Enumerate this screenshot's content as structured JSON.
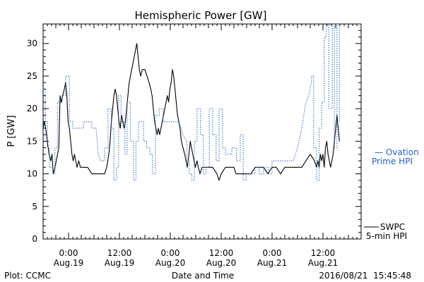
{
  "chart_data": {
    "type": "line",
    "title": "Hemispheric Power [GW]",
    "xlabel": "Date and Time",
    "ylabel": "P [GW]",
    "ylim": [
      0,
      33
    ],
    "yticks": [
      0,
      5,
      10,
      15,
      20,
      25,
      30
    ],
    "xlim_hours": [
      -6,
      69
    ],
    "xticks": [
      {
        "x": 0,
        "time": "0:00",
        "date": "Aug.19"
      },
      {
        "x": 12,
        "time": "12:00",
        "date": "Aug.19"
      },
      {
        "x": 24,
        "time": "0:00",
        "date": "Aug.20"
      },
      {
        "x": 36,
        "time": "12:00",
        "date": "Aug.20"
      },
      {
        "x": 48,
        "time": "0:00",
        "date": "Aug.21"
      },
      {
        "x": 60,
        "time": "12:00",
        "date": "Aug.21"
      }
    ],
    "x_units": "hours relative to Aug.19 0:00",
    "series": [
      {
        "name": "SWPC 5-min HPI",
        "color": "#000000",
        "style": "solid",
        "points": [
          [
            -6,
            17
          ],
          [
            -5.7,
            18
          ],
          [
            -5.4,
            17
          ],
          [
            -5,
            15
          ],
          [
            -4.6,
            13
          ],
          [
            -4.2,
            12
          ],
          [
            -3.9,
            13
          ],
          [
            -3.6,
            10
          ],
          [
            -3.2,
            11
          ],
          [
            -2.9,
            12
          ],
          [
            -2.6,
            13
          ],
          [
            -2.3,
            14
          ],
          [
            -2,
            22
          ],
          [
            -1.7,
            21
          ],
          [
            -1.4,
            22
          ],
          [
            -1,
            23
          ],
          [
            -0.7,
            24
          ],
          [
            -0.4,
            22
          ],
          [
            -0.1,
            18
          ],
          [
            0.2,
            17
          ],
          [
            0.5,
            15
          ],
          [
            0.8,
            13
          ],
          [
            1.1,
            12
          ],
          [
            1.4,
            13
          ],
          [
            1.7,
            12
          ],
          [
            2,
            11
          ],
          [
            2.4,
            12
          ],
          [
            2.8,
            11
          ],
          [
            3.5,
            11
          ],
          [
            4.5,
            11
          ],
          [
            5.5,
            10
          ],
          [
            6.5,
            10
          ],
          [
            7.5,
            10
          ],
          [
            8.5,
            10
          ],
          [
            9,
            11
          ],
          [
            9.5,
            13
          ],
          [
            9.8,
            15
          ],
          [
            10.1,
            18
          ],
          [
            10.4,
            20
          ],
          [
            10.7,
            22
          ],
          [
            11,
            23
          ],
          [
            11.3,
            22
          ],
          [
            11.6,
            20
          ],
          [
            11.9,
            18
          ],
          [
            12.2,
            17
          ],
          [
            12.5,
            19
          ],
          [
            12.8,
            18
          ],
          [
            13.1,
            17
          ],
          [
            13.4,
            18
          ],
          [
            13.7,
            20
          ],
          [
            14,
            22
          ],
          [
            14.3,
            24
          ],
          [
            14.6,
            25
          ],
          [
            14.9,
            26
          ],
          [
            15.2,
            27
          ],
          [
            15.5,
            28
          ],
          [
            15.8,
            29
          ],
          [
            16.1,
            30
          ],
          [
            16.4,
            28
          ],
          [
            16.7,
            26
          ],
          [
            17,
            25
          ],
          [
            17.4,
            26
          ],
          [
            18,
            26
          ],
          [
            18.5,
            25
          ],
          [
            19,
            24
          ],
          [
            19.4,
            23
          ],
          [
            19.7,
            22
          ],
          [
            20,
            20
          ],
          [
            20.3,
            18
          ],
          [
            20.6,
            17
          ],
          [
            20.9,
            16
          ],
          [
            21.2,
            17
          ],
          [
            21.5,
            16
          ],
          [
            21.8,
            17
          ],
          [
            22.1,
            18
          ],
          [
            22.4,
            19
          ],
          [
            22.7,
            20
          ],
          [
            23,
            21
          ],
          [
            23.3,
            22
          ],
          [
            23.6,
            21
          ],
          [
            23.9,
            23
          ],
          [
            24.2,
            24
          ],
          [
            24.5,
            26
          ],
          [
            24.8,
            25
          ],
          [
            25.1,
            23
          ],
          [
            25.4,
            21
          ],
          [
            25.7,
            19
          ],
          [
            26,
            18
          ],
          [
            26.3,
            17
          ],
          [
            26.6,
            15
          ],
          [
            27,
            14
          ],
          [
            27.4,
            13
          ],
          [
            27.7,
            12
          ],
          [
            28,
            11
          ],
          [
            28.4,
            13
          ],
          [
            28.7,
            15
          ],
          [
            29,
            14
          ],
          [
            29.3,
            13
          ],
          [
            29.6,
            12
          ],
          [
            29.9,
            11
          ],
          [
            30.3,
            12
          ],
          [
            30.6,
            11
          ],
          [
            31,
            10
          ],
          [
            31.5,
            11
          ],
          [
            32,
            11
          ],
          [
            33,
            11
          ],
          [
            34,
            11
          ],
          [
            35,
            10
          ],
          [
            35.5,
            9
          ],
          [
            36,
            10
          ],
          [
            37,
            11
          ],
          [
            38,
            11
          ],
          [
            39,
            11
          ],
          [
            39.5,
            10
          ],
          [
            40,
            10
          ],
          [
            41,
            10
          ],
          [
            42,
            10
          ],
          [
            43,
            10
          ],
          [
            44,
            11
          ],
          [
            45,
            11
          ],
          [
            46,
            11
          ],
          [
            47,
            10
          ],
          [
            48,
            11
          ],
          [
            49,
            11
          ],
          [
            50,
            10
          ],
          [
            51,
            11
          ],
          [
            52,
            11
          ],
          [
            53,
            11
          ],
          [
            54,
            11
          ],
          [
            55,
            11
          ],
          [
            56,
            12
          ],
          [
            57,
            13
          ],
          [
            58,
            12
          ],
          [
            58.5,
            11
          ],
          [
            58.8,
            12
          ],
          [
            59.1,
            11
          ],
          [
            59.4,
            13
          ],
          [
            59.7,
            12
          ],
          [
            60,
            13
          ],
          [
            60.3,
            11
          ],
          [
            60.6,
            14
          ],
          [
            60.9,
            15
          ],
          [
            61.2,
            13
          ],
          [
            61.5,
            12
          ],
          [
            61.8,
            11
          ],
          [
            62.1,
            12
          ],
          [
            62.4,
            13
          ],
          [
            62.7,
            15
          ],
          [
            63,
            17
          ],
          [
            63.3,
            19
          ],
          [
            63.6,
            17
          ],
          [
            63.9,
            15
          ]
        ]
      },
      {
        "name": "Ovation Prime HPI",
        "color": "#1f63c4",
        "style": "dotted",
        "points": [
          [
            -6,
            23
          ],
          [
            -5.5,
            23
          ],
          [
            -5.5,
            18
          ],
          [
            -5,
            18
          ],
          [
            -5,
            14
          ],
          [
            -4.5,
            14
          ],
          [
            -4.5,
            11
          ],
          [
            -3.7,
            11
          ],
          [
            -3.7,
            10
          ],
          [
            -3.2,
            10
          ],
          [
            -3.2,
            14
          ],
          [
            -2.6,
            14
          ],
          [
            -2.6,
            21
          ],
          [
            -1.5,
            21
          ],
          [
            -1.5,
            22
          ],
          [
            -0.7,
            22
          ],
          [
            -0.7,
            25
          ],
          [
            0.2,
            25
          ],
          [
            0.2,
            18
          ],
          [
            1,
            18
          ],
          [
            1,
            17
          ],
          [
            3.5,
            17
          ],
          [
            3.5,
            18
          ],
          [
            5.5,
            18
          ],
          [
            5.5,
            17
          ],
          [
            6.5,
            17
          ],
          [
            7,
            13
          ],
          [
            7.5,
            12
          ],
          [
            8.5,
            12
          ],
          [
            8.5,
            14
          ],
          [
            9.3,
            14
          ],
          [
            9.3,
            20
          ],
          [
            10.1,
            20
          ],
          [
            10.1,
            17
          ],
          [
            10.7,
            17
          ],
          [
            10.7,
            9
          ],
          [
            11.3,
            9
          ],
          [
            11.3,
            11
          ],
          [
            11.8,
            11
          ],
          [
            11.8,
            22
          ],
          [
            12.4,
            22
          ],
          [
            12.4,
            18
          ],
          [
            13.3,
            18
          ],
          [
            13.3,
            13
          ],
          [
            13.8,
            13
          ],
          [
            13.8,
            21
          ],
          [
            14.6,
            21
          ],
          [
            14.6,
            15
          ],
          [
            15.3,
            15
          ],
          [
            15.3,
            9
          ],
          [
            15.9,
            9
          ],
          [
            15.9,
            15
          ],
          [
            16.5,
            15
          ],
          [
            16.5,
            18
          ],
          [
            17.7,
            18
          ],
          [
            17.7,
            15
          ],
          [
            18.4,
            15
          ],
          [
            18.4,
            14
          ],
          [
            19.2,
            14
          ],
          [
            19.2,
            13
          ],
          [
            19.8,
            13
          ],
          [
            19.8,
            10
          ],
          [
            20.5,
            10
          ],
          [
            20.5,
            19
          ],
          [
            21.4,
            19
          ],
          [
            21.4,
            20
          ],
          [
            22.3,
            20
          ],
          [
            22.3,
            18
          ],
          [
            26,
            18
          ],
          [
            27,
            16
          ],
          [
            27.9,
            15
          ],
          [
            27.9,
            12
          ],
          [
            28.5,
            12
          ],
          [
            28.5,
            10
          ],
          [
            29.1,
            10
          ],
          [
            29.1,
            9
          ],
          [
            29.7,
            9
          ],
          [
            29.7,
            15
          ],
          [
            30.3,
            15
          ],
          [
            30.3,
            20
          ],
          [
            31.1,
            20
          ],
          [
            31.1,
            16
          ],
          [
            31.8,
            16
          ],
          [
            31.8,
            10
          ],
          [
            32.4,
            10
          ],
          [
            32.4,
            11
          ],
          [
            33.2,
            11
          ],
          [
            33.2,
            20
          ],
          [
            34,
            20
          ],
          [
            34,
            16
          ],
          [
            34.8,
            16
          ],
          [
            34.8,
            12
          ],
          [
            35.5,
            12
          ],
          [
            35.5,
            20
          ],
          [
            36.3,
            20
          ],
          [
            36.3,
            14
          ],
          [
            37,
            14
          ],
          [
            37,
            13
          ],
          [
            38.5,
            13
          ],
          [
            38.5,
            14
          ],
          [
            39.6,
            14
          ],
          [
            39.6,
            12
          ],
          [
            40.5,
            12
          ],
          [
            40.5,
            16
          ],
          [
            41.2,
            16
          ],
          [
            41.2,
            9
          ],
          [
            41.9,
            9
          ],
          [
            41.9,
            10
          ],
          [
            43,
            10
          ],
          [
            43,
            10
          ],
          [
            44,
            10
          ],
          [
            44,
            11
          ],
          [
            45,
            11
          ],
          [
            45,
            10
          ],
          [
            46,
            10
          ],
          [
            46,
            11
          ],
          [
            47.2,
            11
          ],
          [
            47.2,
            10
          ],
          [
            48,
            10
          ],
          [
            48,
            12
          ],
          [
            53,
            12
          ],
          [
            54,
            14
          ],
          [
            55,
            17
          ],
          [
            56,
            21
          ],
          [
            56.6,
            22
          ],
          [
            57.3,
            24
          ],
          [
            57.3,
            25
          ],
          [
            57.8,
            25
          ],
          [
            57.8,
            14
          ],
          [
            58.5,
            14
          ],
          [
            58.5,
            9
          ],
          [
            59.1,
            9
          ],
          [
            59.1,
            17
          ],
          [
            59.7,
            17
          ],
          [
            59.7,
            21
          ],
          [
            60.3,
            21
          ],
          [
            60.3,
            31
          ],
          [
            60.8,
            31
          ],
          [
            60.8,
            33
          ],
          [
            61.4,
            33
          ],
          [
            61.4,
            20
          ],
          [
            62.2,
            20
          ],
          [
            62.2,
            33
          ],
          [
            62.7,
            33
          ],
          [
            62.7,
            14
          ],
          [
            63.3,
            14
          ],
          [
            63.3,
            33
          ],
          [
            63.9,
            33
          ],
          [
            63.9,
            18
          ]
        ]
      }
    ],
    "legend": {
      "ovation_line1": "— Ovation",
      "ovation_line2": "Prime HPI",
      "swpc_line1": "SWPC",
      "swpc_line2": "5-min HPI"
    },
    "footer_left": "Plot: CCMC",
    "footer_right": "2016/08/21  15:45:48"
  }
}
